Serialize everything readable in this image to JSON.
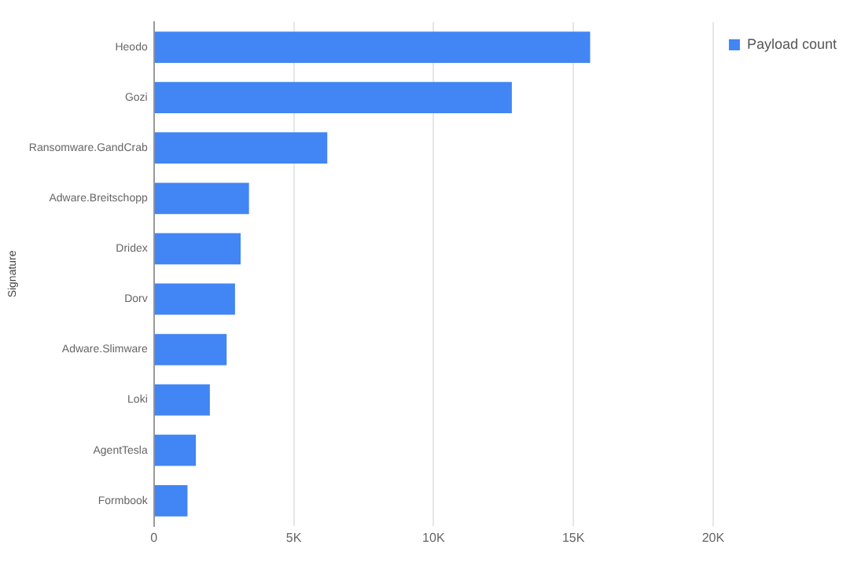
{
  "chart_data": {
    "type": "bar",
    "orientation": "horizontal",
    "ylabel": "Signature",
    "categories": [
      "Heodo",
      "Gozi",
      "Ransomware.GandCrab",
      "Adware.Breitschopp",
      "Dridex",
      "Dorv",
      "Adware.Slimware",
      "Loki",
      "AgentTesla",
      "Formbook"
    ],
    "series": [
      {
        "name": "Payload count",
        "color": "#4285f4",
        "values": [
          15600,
          12800,
          6200,
          3400,
          3100,
          2900,
          2600,
          2000,
          1500,
          1200
        ]
      }
    ],
    "xlim": [
      0,
      20000
    ],
    "xticks": [
      {
        "value": 0,
        "label": "0"
      },
      {
        "value": 5000,
        "label": "5K"
      },
      {
        "value": 10000,
        "label": "10K"
      },
      {
        "value": 15000,
        "label": "15K"
      },
      {
        "value": 20000,
        "label": "20K"
      }
    ],
    "grid": "x",
    "legend": "top right"
  }
}
